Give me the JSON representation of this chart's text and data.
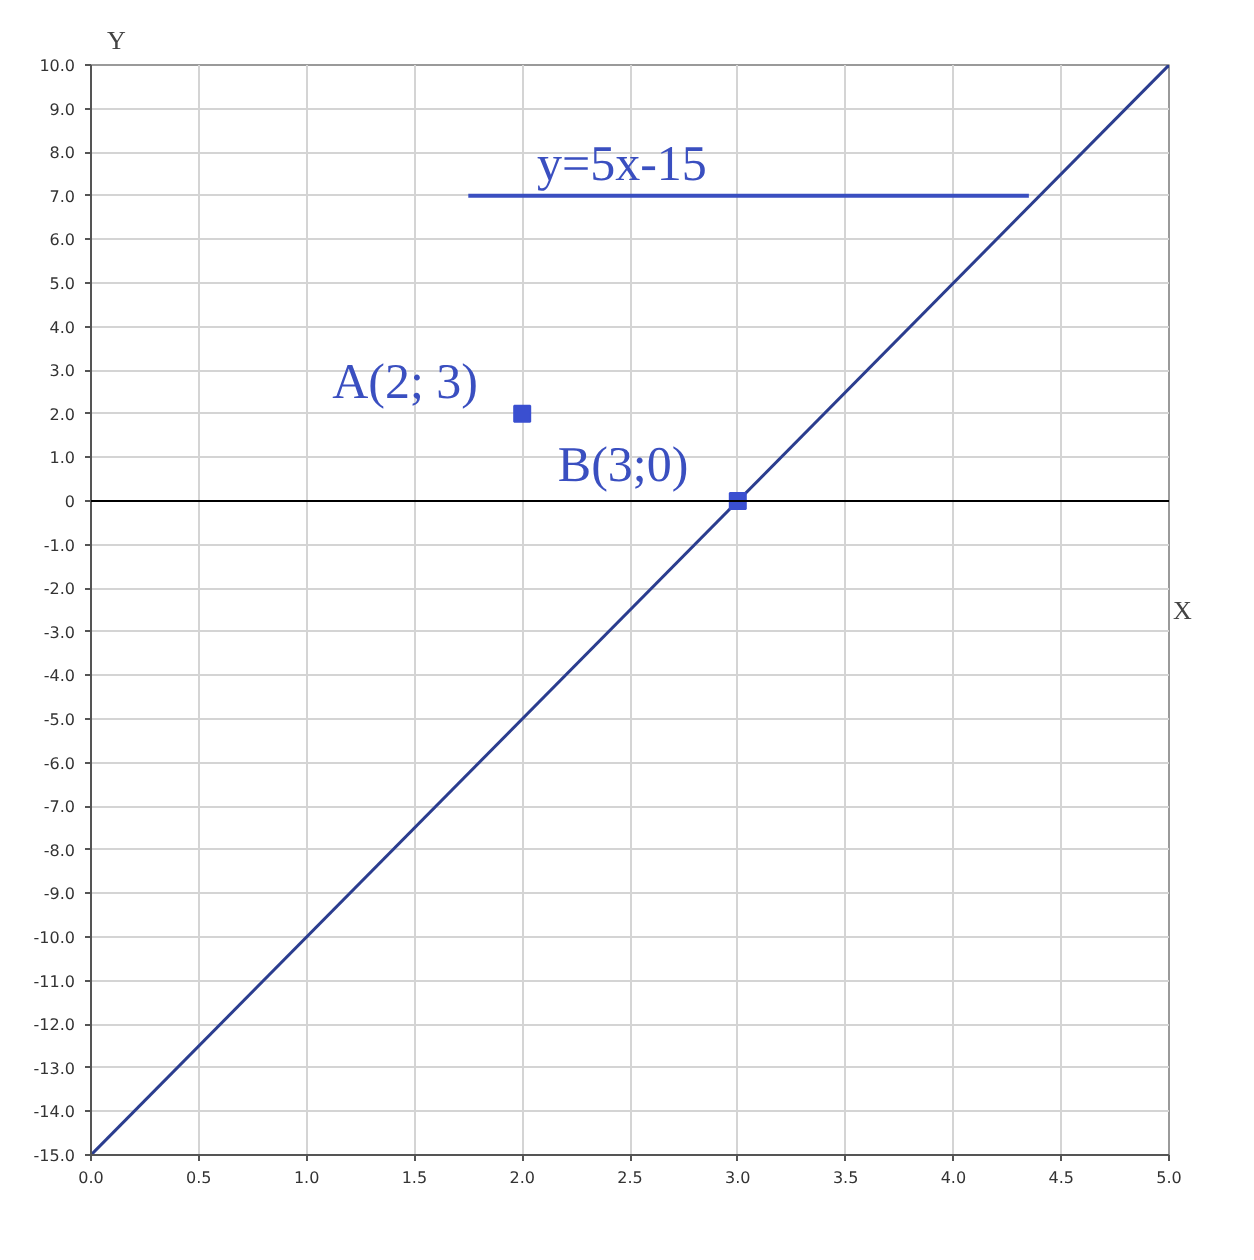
{
  "chart_data": {
    "type": "line",
    "xlabel": "X",
    "ylabel": "Y",
    "xlim": [
      0,
      5
    ],
    "ylim": [
      -15,
      10
    ],
    "xticks": [
      {
        "value": 0,
        "label": "0.0"
      },
      {
        "value": 0.5,
        "label": "0.5"
      },
      {
        "value": 1,
        "label": "1.0"
      },
      {
        "value": 1.5,
        "label": "1.5"
      },
      {
        "value": 2,
        "label": "2.0"
      },
      {
        "value": 2.5,
        "label": "2.5"
      },
      {
        "value": 3,
        "label": "3.0"
      },
      {
        "value": 3.5,
        "label": "3.5"
      },
      {
        "value": 4,
        "label": "4.0"
      },
      {
        "value": 4.5,
        "label": "4.5"
      },
      {
        "value": 5,
        "label": "5.0"
      }
    ],
    "yticks": [
      {
        "value": -15,
        "label": "-15.0"
      },
      {
        "value": -14,
        "label": "-14.0"
      },
      {
        "value": -13,
        "label": "-13.0"
      },
      {
        "value": -12,
        "label": "-12.0"
      },
      {
        "value": -11,
        "label": "-11.0"
      },
      {
        "value": -10,
        "label": "-10.0"
      },
      {
        "value": -9,
        "label": "-9.0"
      },
      {
        "value": -8,
        "label": "-8.0"
      },
      {
        "value": -7,
        "label": "-7.0"
      },
      {
        "value": -6,
        "label": "-6.0"
      },
      {
        "value": -5,
        "label": "-5.0"
      },
      {
        "value": -4,
        "label": "-4.0"
      },
      {
        "value": -3,
        "label": "-3.0"
      },
      {
        "value": -2,
        "label": "-2.0"
      },
      {
        "value": -1,
        "label": "-1.0"
      },
      0,
      {
        "value": 1,
        "label": "1.0"
      },
      {
        "value": 2,
        "label": "2.0"
      },
      {
        "value": 3,
        "label": "3.0"
      },
      {
        "value": 4,
        "label": "4.0"
      },
      {
        "value": 5,
        "label": "5.0"
      },
      {
        "value": 6,
        "label": "6.0"
      },
      {
        "value": 7,
        "label": "7.0"
      },
      {
        "value": 8,
        "label": "8.0"
      },
      {
        "value": 9,
        "label": "9.0"
      },
      {
        "value": 10,
        "label": "10.0"
      }
    ],
    "grid": true,
    "line_style": "solid",
    "series": [
      {
        "color": "#2b3d8f",
        "x": [
          0,
          5
        ],
        "values": [
          -15,
          10
        ]
      },
      {
        "color": "#3a4fc0",
        "x": [
          1.75,
          4.35
        ],
        "values": [
          7,
          7
        ]
      },
      {
        "type": "scatter",
        "color": "#3a4fd0",
        "marker": "square",
        "x": [
          2,
          3
        ],
        "values": [
          2,
          0
        ]
      }
    ],
    "ref_lines": [
      {
        "axis": "y",
        "value": 0,
        "color": "#000000"
      }
    ],
    "annotations": [
      {
        "text": "y=5x-15",
        "x": 2.05,
        "y": 7
      },
      {
        "text": "A(2; 3)",
        "x": 2,
        "y": 2
      },
      {
        "text": "B(3;0)",
        "x": 3,
        "y": 0
      }
    ]
  }
}
